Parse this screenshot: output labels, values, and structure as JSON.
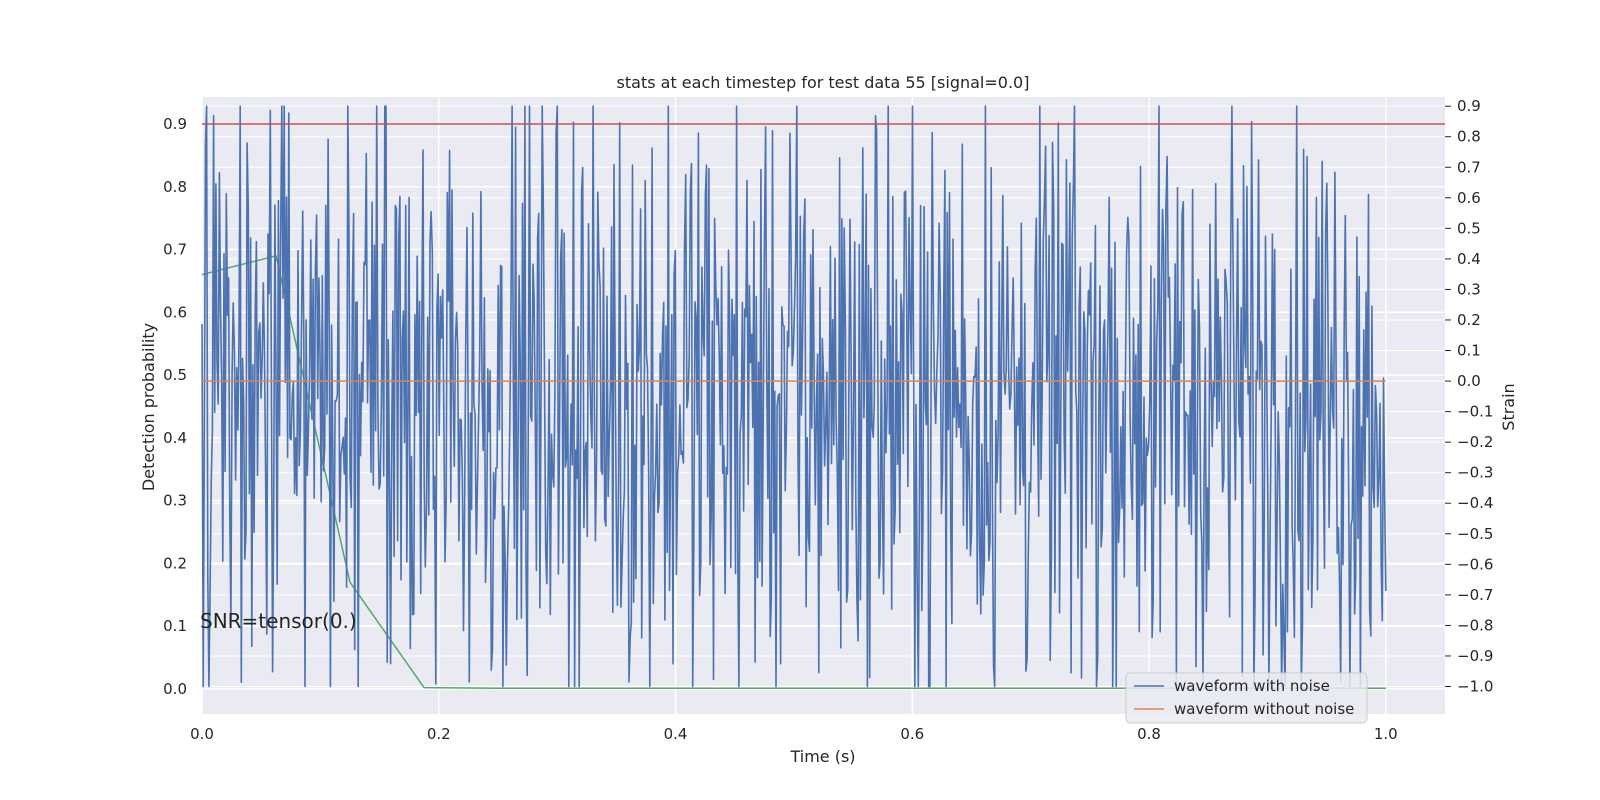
{
  "chart_data": {
    "type": "line",
    "title": "stats at each timestep for test data 55 [signal=0.0]",
    "xlabel": "Time (s)",
    "ylabel": "Detection probability",
    "y2label": "Strain",
    "xlim": [
      0.0,
      1.05
    ],
    "ylim": [
      -0.04,
      0.943
    ],
    "y2lim": [
      -1.09,
      0.93
    ],
    "x_ticks": [
      0.0,
      0.2,
      0.4,
      0.6,
      0.8,
      1.0
    ],
    "x_tick_labels": [
      "0.0",
      "0.2",
      "0.4",
      "0.6",
      "0.8",
      "1.0"
    ],
    "y_ticks": [
      0.0,
      0.1,
      0.2,
      0.3,
      0.4,
      0.5,
      0.6,
      0.7,
      0.8,
      0.9
    ],
    "y_tick_labels": [
      "0.0",
      "0.1",
      "0.2",
      "0.3",
      "0.4",
      "0.5",
      "0.6",
      "0.7",
      "0.8",
      "0.9"
    ],
    "y2_ticks": [
      -1.0,
      -0.9,
      -0.8,
      -0.7,
      -0.6,
      -0.5,
      -0.4,
      -0.3,
      -0.2,
      -0.1,
      0.0,
      0.1,
      0.2,
      0.3,
      0.4,
      0.5,
      0.6,
      0.7,
      0.8,
      0.9
    ],
    "y2_tick_labels": [
      "−1.0",
      "−0.9",
      "−0.8",
      "−0.7",
      "−0.6",
      "−0.5",
      "−0.4",
      "−0.3",
      "−0.2",
      "−0.1",
      "0.0",
      "0.1",
      "0.2",
      "0.3",
      "0.4",
      "0.5",
      "0.6",
      "0.7",
      "0.8",
      "0.9"
    ],
    "grid": true,
    "legend_position": "bottom-right",
    "annotation": "SNR=tensor(0.)",
    "series": [
      {
        "name": "detection probability",
        "axis": "left",
        "color": "#55a868",
        "in_legend": false,
        "x": [
          0.0,
          0.0625,
          0.125,
          0.1875,
          0.25,
          0.3125,
          0.375,
          0.4375,
          0.5,
          0.5625,
          0.625,
          0.6875,
          0.75,
          0.8125,
          0.875,
          0.9375,
          1.0
        ],
        "y": [
          0.66,
          0.69,
          0.17,
          0.002,
          0.001,
          0.001,
          0.001,
          0.001,
          0.001,
          0.001,
          0.001,
          0.001,
          0.001,
          0.001,
          0.001,
          0.001,
          0.001
        ]
      },
      {
        "name": "threshold",
        "axis": "left",
        "color": "#c44e52",
        "in_legend": false,
        "x": [
          0.0,
          1.05
        ],
        "y": [
          0.9,
          0.9
        ]
      },
      {
        "name": "waveform with noise",
        "axis": "right",
        "color": "#4c72b0",
        "in_legend": true,
        "x_start": 0.0,
        "x_end": 1.0,
        "samples": 1024,
        "seed": 55,
        "y_min": -1.0,
        "y_max": 0.9
      },
      {
        "name": "waveform without noise",
        "axis": "right",
        "color": "#dd8452",
        "in_legend": true,
        "x": [
          0.0,
          1.0
        ],
        "y": [
          0.0,
          0.0
        ]
      }
    ]
  }
}
